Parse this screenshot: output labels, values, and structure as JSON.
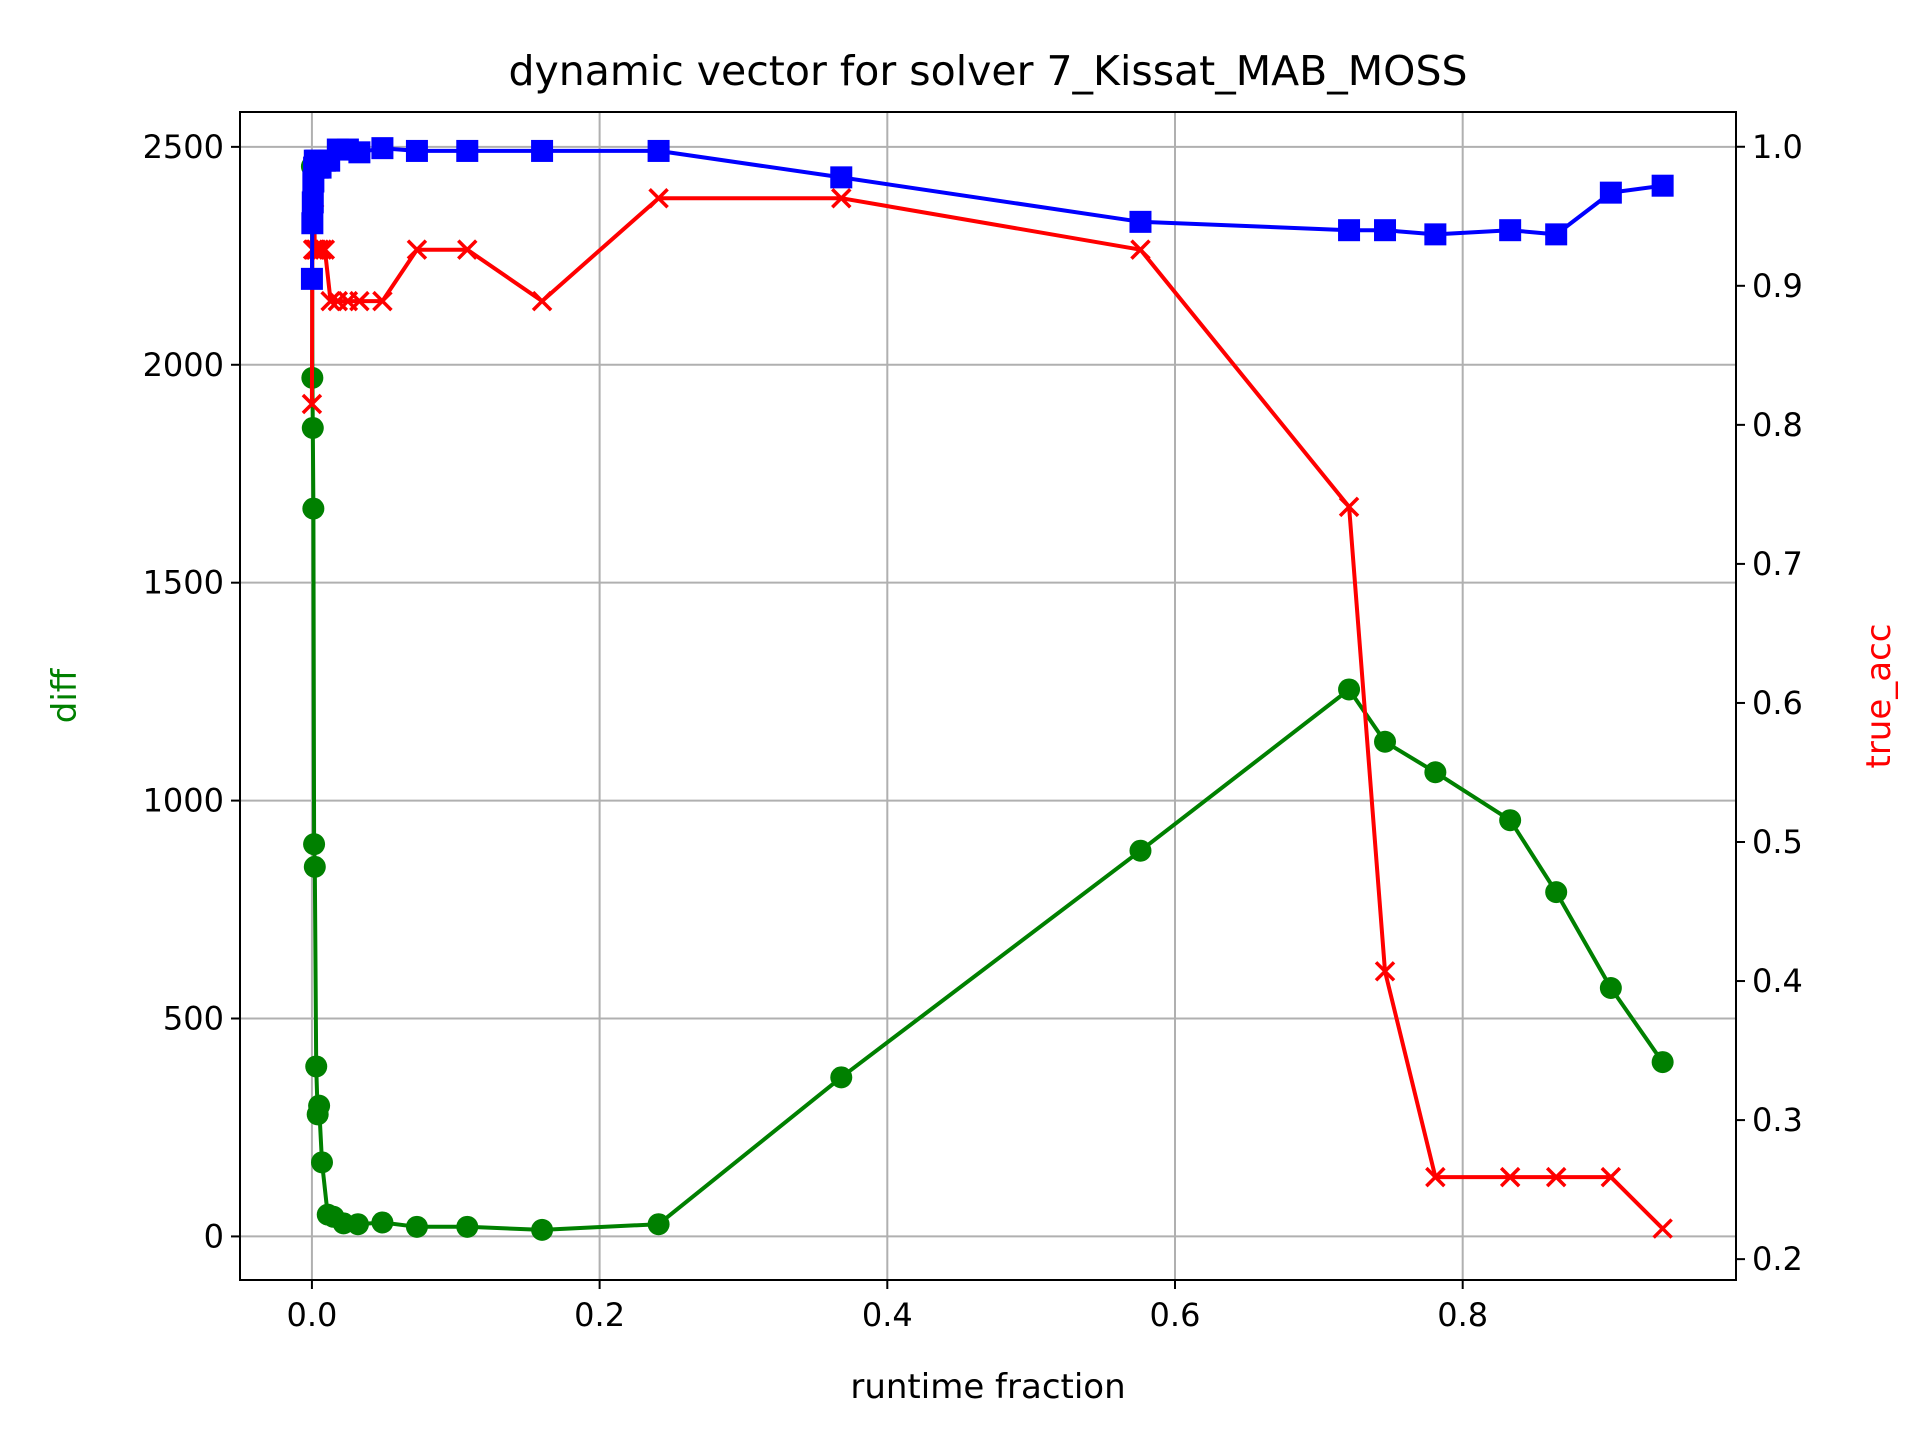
{
  "chart_data": {
    "type": "line",
    "title": "dynamic vector for solver 7_Kissat_MAB_MOSS",
    "xlabel": "runtime fraction",
    "ylabel_left": "diff",
    "ylabel_right": "true_acc",
    "xlim": [
      -0.05,
      0.99
    ],
    "ylim_left": [
      -100,
      2580
    ],
    "ylim_right": [
      0.185,
      1.025
    ],
    "x_ticks": [
      0.0,
      0.2,
      0.4,
      0.6,
      0.8
    ],
    "x_tick_labels": [
      "0.0",
      "0.2",
      "0.4",
      "0.6",
      "0.8"
    ],
    "y_left_ticks": [
      0,
      500,
      1000,
      1500,
      2000,
      2500
    ],
    "y_left_tick_labels": [
      "0",
      "500",
      "1000",
      "1500",
      "2000",
      "2500"
    ],
    "y_right_ticks": [
      0.2,
      0.3,
      0.4,
      0.5,
      0.6,
      0.7,
      0.8,
      0.9,
      1.0
    ],
    "y_right_tick_labels": [
      "0.2",
      "0.3",
      "0.4",
      "0.5",
      "0.6",
      "0.7",
      "0.8",
      "0.9",
      "1.0"
    ],
    "grid": true,
    "colors": {
      "diff": "#008000",
      "acc": "#ff0000",
      "blue": "#0000ff",
      "left_label": "#008000",
      "right_label": "#ff0000"
    },
    "series": [
      {
        "axis": "left",
        "color": "#008000",
        "marker": "circle",
        "x": [
          0.0,
          0.0003,
          0.0006,
          0.001,
          0.0015,
          0.002,
          0.003,
          0.004,
          0.005,
          0.007,
          0.011,
          0.015,
          0.022,
          0.032,
          0.049,
          0.073,
          0.108,
          0.16,
          0.241,
          0.368,
          0.576,
          0.721,
          0.746,
          0.781,
          0.833,
          0.865,
          0.903,
          0.939
        ],
        "y": [
          2455,
          1970,
          1855,
          1670,
          900,
          848,
          390,
          280,
          300,
          170,
          50,
          45,
          30,
          28,
          32,
          22,
          22,
          15,
          28,
          365,
          885,
          1255,
          1135,
          1065,
          955,
          790,
          570,
          400
        ]
      },
      {
        "axis": "right",
        "color": "#ff0000",
        "marker": "x",
        "x": [
          0.0,
          0.0004,
          0.0008,
          0.0015,
          0.002,
          0.003,
          0.005,
          0.007,
          0.009,
          0.013,
          0.018,
          0.025,
          0.033,
          0.049,
          0.073,
          0.108,
          0.16,
          0.241,
          0.368,
          0.576,
          0.721,
          0.746,
          0.781,
          0.833,
          0.865,
          0.903,
          0.939
        ],
        "y": [
          0.815,
          0.963,
          0.926,
          0.963,
          0.926,
          0.926,
          0.926,
          0.926,
          0.926,
          0.889,
          0.889,
          0.889,
          0.889,
          0.889,
          0.926,
          0.926,
          0.889,
          0.963,
          0.963,
          0.926,
          0.741,
          0.407,
          0.259,
          0.259,
          0.259,
          0.259,
          0.222
        ]
      },
      {
        "axis": "right",
        "color": "#0000ff",
        "marker": "square",
        "x": [
          0.0,
          0.0003,
          0.0006,
          0.001,
          0.0015,
          0.002,
          0.003,
          0.004,
          0.006,
          0.009,
          0.012,
          0.018,
          0.025,
          0.033,
          0.049,
          0.073,
          0.108,
          0.16,
          0.241,
          0.368,
          0.576,
          0.721,
          0.746,
          0.781,
          0.833,
          0.865,
          0.903,
          0.939
        ],
        "y": [
          0.905,
          0.945,
          0.96,
          0.975,
          0.985,
          0.99,
          0.99,
          0.985,
          0.985,
          0.99,
          0.99,
          0.998,
          0.998,
          0.996,
          0.999,
          0.997,
          0.997,
          0.997,
          0.997,
          0.978,
          0.946,
          0.94,
          0.94,
          0.937,
          0.94,
          0.937,
          0.967,
          0.972
        ]
      }
    ]
  }
}
